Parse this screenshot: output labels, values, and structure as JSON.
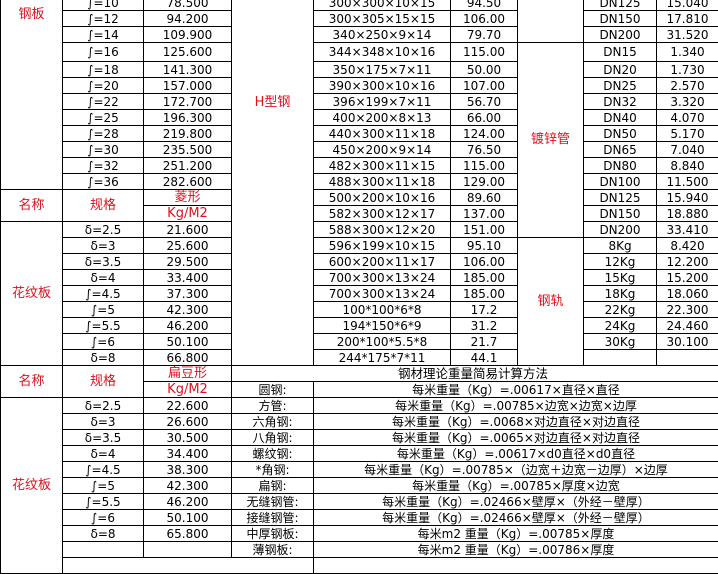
{
  "steel_plate": {
    "name": "钢板",
    "rows": [
      {
        "spec": "∫=10",
        "value": "78.500"
      },
      {
        "spec": "∫=12",
        "value": "94.200"
      },
      {
        "spec": "∫=14",
        "value": "109.900"
      },
      {
        "spec": "∫=16",
        "value": "125.600"
      },
      {
        "spec": "∫=18",
        "value": "141.300"
      },
      {
        "spec": "∫=20",
        "value": "157.000"
      },
      {
        "spec": "∫=22",
        "value": "172.700"
      },
      {
        "spec": "∫=25",
        "value": "196.300"
      },
      {
        "spec": "∫=28",
        "value": "219.800"
      },
      {
        "spec": "∫=30",
        "value": "235.500"
      },
      {
        "spec": "∫=32",
        "value": "251.200"
      },
      {
        "spec": "∫=36",
        "value": "282.600"
      }
    ]
  },
  "h_beam": {
    "name": "H型钢",
    "rows": [
      {
        "spec": "300×300×10×15",
        "value": "94.50"
      },
      {
        "spec": "300×305×15×15",
        "value": "106.00"
      },
      {
        "spec": "340×250×9×14",
        "value": "79.70"
      },
      {
        "spec": "344×348×10×16",
        "value": "115.00"
      },
      {
        "spec": "350×175×7×11",
        "value": "50.00"
      },
      {
        "spec": "390×300×10×16",
        "value": "107.00"
      },
      {
        "spec": "396×199×7×11",
        "value": "56.70"
      },
      {
        "spec": "400×200×8×13",
        "value": "66.00"
      },
      {
        "spec": "440×300×11×18",
        "value": "124.00"
      },
      {
        "spec": "450×200×9×14",
        "value": "76.50"
      },
      {
        "spec": "482×300×11×15",
        "value": "115.00"
      },
      {
        "spec": "488×300×11×18",
        "value": "129.00"
      },
      {
        "spec": "500×200×10×16",
        "value": "89.60"
      },
      {
        "spec": "582×300×12×17",
        "value": "137.00"
      },
      {
        "spec": "588×300×12×20",
        "value": "151.00"
      },
      {
        "spec": "596×199×10×15",
        "value": "95.10"
      },
      {
        "spec": "600×200×11×17",
        "value": "106.00"
      },
      {
        "spec": "700×300×13×24",
        "value": "185.00"
      },
      {
        "spec": "700×300×13×24",
        "value": "185.00"
      },
      {
        "spec": "100*100*6*8",
        "value": "17.2"
      },
      {
        "spec": "194*150*6*9",
        "value": "31.2"
      },
      {
        "spec": "200*100*5.5*8",
        "value": "21.7"
      },
      {
        "spec": "244*175*7*11",
        "value": "44.1"
      }
    ]
  },
  "pipe_top": {
    "rows": [
      {
        "spec": "DN125",
        "value": "15.040"
      },
      {
        "spec": "DN150",
        "value": "17.810"
      },
      {
        "spec": "DN200",
        "value": "31.520"
      }
    ]
  },
  "galvanized_pipe": {
    "name": "镀锌管",
    "rows": [
      {
        "spec": "DN15",
        "value": "1.340"
      },
      {
        "spec": "DN20",
        "value": "1.730"
      },
      {
        "spec": "DN25",
        "value": "2.570"
      },
      {
        "spec": "DN32",
        "value": "3.320"
      },
      {
        "spec": "DN40",
        "value": "4.070"
      },
      {
        "spec": "DN50",
        "value": "5.170"
      },
      {
        "spec": "DN65",
        "value": "7.040"
      },
      {
        "spec": "DN80",
        "value": "8.840"
      },
      {
        "spec": "DN100",
        "value": "11.500"
      },
      {
        "spec": "DN125",
        "value": "15.940"
      },
      {
        "spec": "DN150",
        "value": "18.880"
      },
      {
        "spec": "DN200",
        "value": "33.410"
      }
    ]
  },
  "rail": {
    "name": "钢轨",
    "rows": [
      {
        "spec": "8Kg",
        "value": "8.420"
      },
      {
        "spec": "12Kg",
        "value": "12.200"
      },
      {
        "spec": "15Kg",
        "value": "15.200"
      },
      {
        "spec": "18Kg",
        "value": "18.060"
      },
      {
        "spec": "22Kg",
        "value": "22.300"
      },
      {
        "spec": "24Kg",
        "value": "24.460"
      },
      {
        "spec": "30Kg",
        "value": "30.100"
      }
    ]
  },
  "checker_diamond": {
    "header": {
      "name": "名称",
      "spec": "规格",
      "type": "菱形",
      "unit": "Kg/M2"
    },
    "name": "花纹板",
    "rows": [
      {
        "spec": "δ=2.5",
        "value": "21.600"
      },
      {
        "spec": "δ=3",
        "value": "25.600"
      },
      {
        "spec": "δ=3.5",
        "value": "29.500"
      },
      {
        "spec": "δ=4",
        "value": "33.400"
      },
      {
        "spec": "∫=4.5",
        "value": "37.300"
      },
      {
        "spec": "∫=5",
        "value": "42.300"
      },
      {
        "spec": "∫=5.5",
        "value": "46.200"
      },
      {
        "spec": "∫=6",
        "value": "50.100"
      },
      {
        "spec": "δ=8",
        "value": "66.800"
      }
    ]
  },
  "checker_lentil": {
    "header": {
      "name": "名称",
      "spec": "规格",
      "type": "扁豆形",
      "unit": "Kg/M2"
    },
    "name": "花纹板",
    "rows": [
      {
        "spec": "δ=2.5",
        "value": "22.600"
      },
      {
        "spec": "δ=3",
        "value": "26.600"
      },
      {
        "spec": "δ=3.5",
        "value": "30.500"
      },
      {
        "spec": "δ=4",
        "value": "34.400"
      },
      {
        "spec": "∫=4.5",
        "value": "38.300"
      },
      {
        "spec": "∫=5",
        "value": "42.300"
      },
      {
        "spec": "∫=5.5",
        "value": "46.200"
      },
      {
        "spec": "∫=6",
        "value": "50.100"
      },
      {
        "spec": "δ=8",
        "value": "65.800"
      }
    ]
  },
  "formulas": {
    "title": "钢材理论重量简易计算方法",
    "rows": [
      {
        "label": "圆钢:",
        "formula": "每米重量（Kg）=.00617×直径×直径"
      },
      {
        "label": "方管:",
        "formula": "每米重量（Kg）=.00785×边宽×边宽×边厚"
      },
      {
        "label": "六角钢:",
        "formula": "每米重量（Kg）=.0068×对边直径×对边直径"
      },
      {
        "label": "八角钢:",
        "formula": "每米重量（Kg）=.0065×对边直径×对边直径"
      },
      {
        "label": "螺纹钢:",
        "formula": "每米重量（Kg）=.00617×d0直径×d0直径"
      },
      {
        "label": "*角钢:",
        "formula": "每米重量（Kg）=.00785×（边宽＋边宽－边厚）×边厚"
      },
      {
        "label": "扁钢:",
        "formula": "每米重量（Kg）=.00785×厚度×边宽"
      },
      {
        "label": "无缝钢管:",
        "formula": "每米重量（Kg）=.02466×壁厚×（外经－壁厚）"
      },
      {
        "label": "接缝钢管:",
        "formula": "每米重量（Kg）=.02466×壁厚×（外经－壁厚）"
      },
      {
        "label": "中厚钢板:",
        "formula": "每米m2 重量（Kg）=.00785×厚度"
      },
      {
        "label": "薄钢板:",
        "formula": "每米m2 重量（Kg）=.00786×厚度"
      }
    ]
  },
  "colors": {
    "label_red": "#d8141e",
    "text": "#000000",
    "grid": "#000000"
  }
}
